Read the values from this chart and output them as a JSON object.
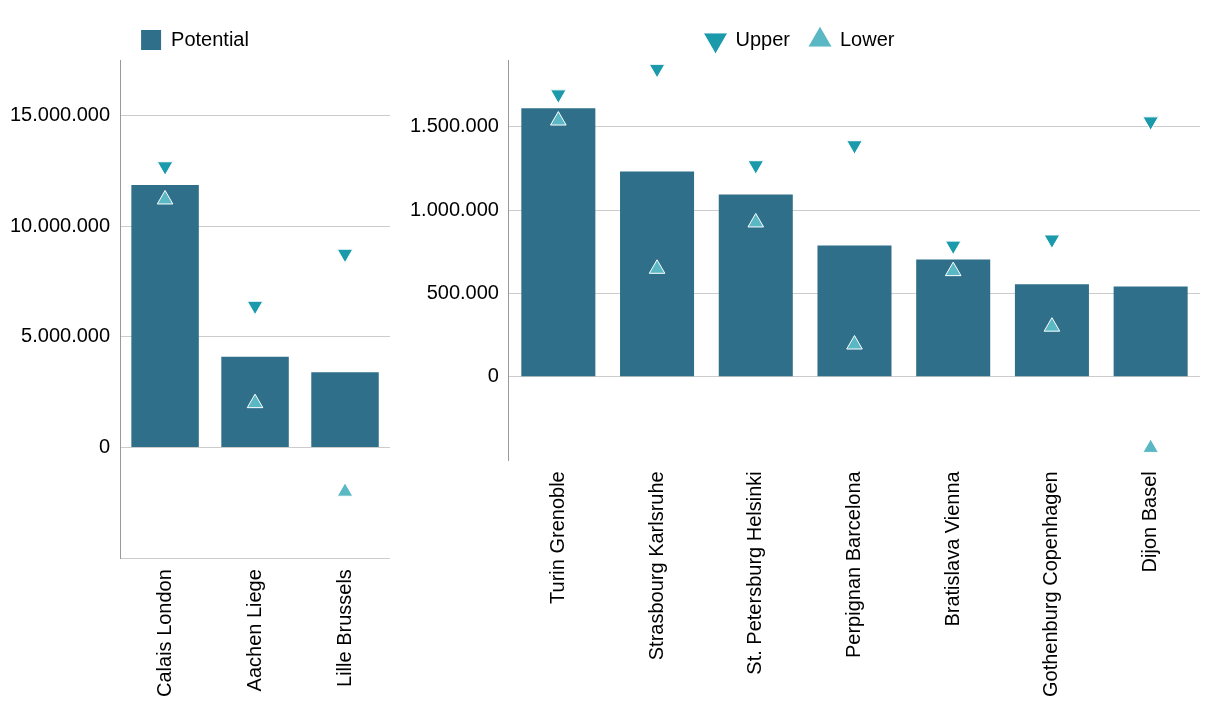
{
  "chart_data": [
    {
      "type": "bar",
      "categories": [
        "Calais London",
        "Aachen Liege",
        "Lille Brussels"
      ],
      "ylim": [
        -5000000,
        17500000
      ],
      "yticks": [
        {
          "value": -5000000,
          "label": null
        },
        {
          "value": 0,
          "label": "0"
        },
        {
          "value": 5000000,
          "label": "5.000.000"
        },
        {
          "value": 10000000,
          "label": "10.000.000"
        },
        {
          "value": 15000000,
          "label": "15.000.000"
        }
      ],
      "grid": "y",
      "legend": "top",
      "marker": "triangle",
      "series": [
        {
          "name": "Potential",
          "type": "bar",
          "color": "#2f6f8a",
          "values": [
            11850000,
            4100000,
            3400000
          ]
        },
        {
          "type": "scatter",
          "color": "#1a9aaa",
          "values": [
            12700000,
            6400000,
            8750000
          ]
        },
        {
          "type": "scatter",
          "color": "#5ab8c4",
          "values": [
            11200000,
            2000000,
            -2000000
          ]
        }
      ]
    },
    {
      "type": "bar",
      "categories": [
        "Turin Grenoble",
        "Strasbourg Karlsruhe",
        "St. Petersburg Helsinki",
        "Perpignan Barcelona",
        "Bratislava Vienna",
        "Gothenburg Copenhagen",
        "Dijon Basel"
      ],
      "ylim": [
        -500000,
        1900000
      ],
      "yticks": [
        {
          "value": 0,
          "label": "0"
        },
        {
          "value": 500000,
          "label": "500.000"
        },
        {
          "value": 1000000,
          "label": "1.000.000"
        },
        {
          "value": 1500000,
          "label": "1.500.000"
        }
      ],
      "grid": "y",
      "legend": "top",
      "marker": "triangle",
      "series": [
        {
          "type": "bar",
          "color": "#2f6f8a",
          "values": [
            1611000,
            1231000,
            1093000,
            787000,
            704000,
            556000,
            542000
          ]
        },
        {
          "name": "Upper",
          "type": "scatter",
          "color": "#1a9aaa",
          "values": [
            1694000,
            1847000,
            1269000,
            1389000,
            787000,
            824000,
            1532000
          ]
        },
        {
          "name": "Lower",
          "type": "scatter",
          "color": "#5ab8c4",
          "values": [
            1537000,
            648000,
            926000,
            194000,
            634000,
            301000,
            -426000
          ]
        }
      ]
    }
  ]
}
